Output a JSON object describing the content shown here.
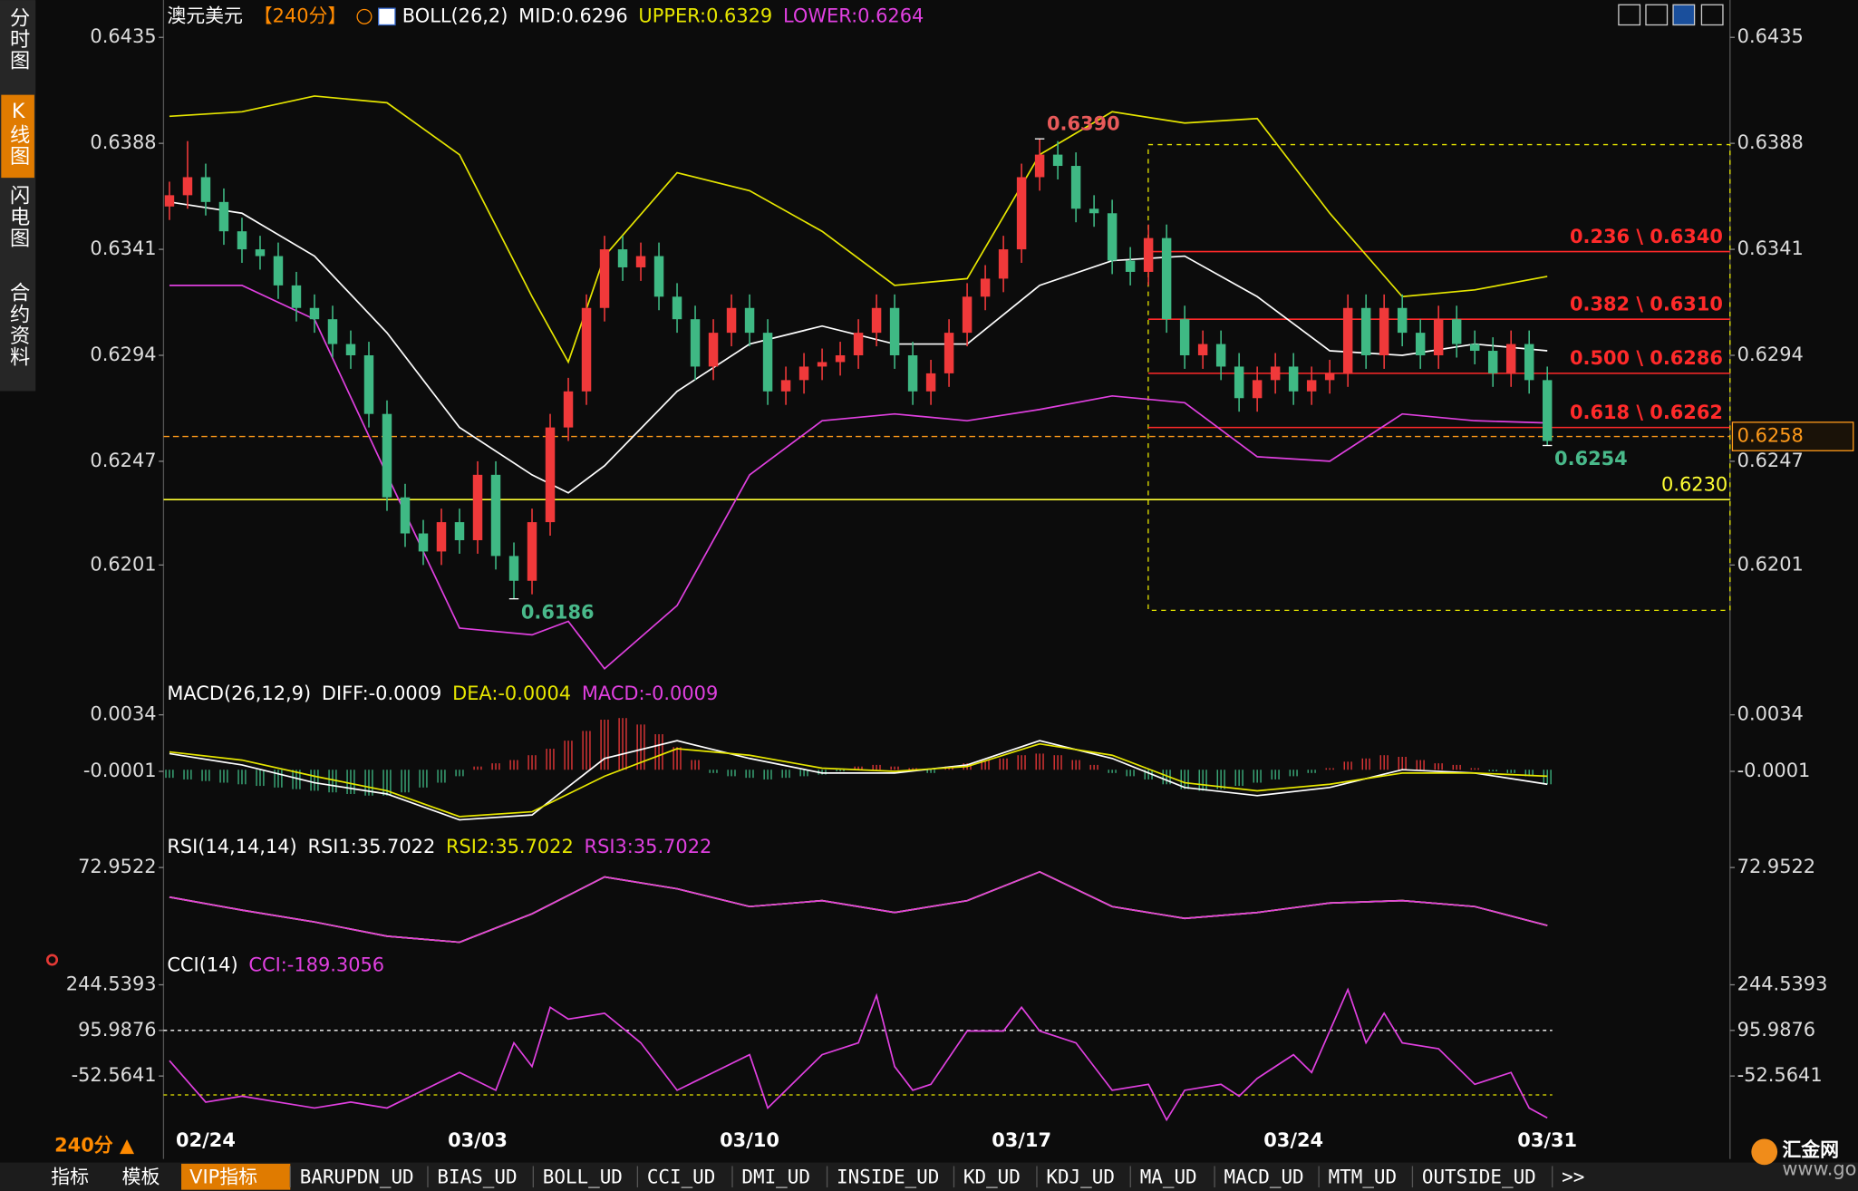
{
  "chart_data": [
    {
      "type": "candlestick",
      "title": "澳元美元",
      "period": "【240分】",
      "indicator": "BOLL(26,2)",
      "categories": [
        null,
        null,
        "02/24",
        null,
        null,
        null,
        null,
        null,
        null,
        null,
        null,
        null,
        null,
        null,
        null,
        null,
        null,
        "03/03",
        null,
        null,
        null,
        null,
        null,
        null,
        null,
        null,
        null,
        null,
        null,
        null,
        null,
        null,
        "03/10",
        null,
        null,
        null,
        null,
        null,
        null,
        null,
        null,
        null,
        null,
        null,
        null,
        null,
        null,
        "03/17",
        null,
        null,
        null,
        null,
        null,
        null,
        null,
        null,
        null,
        null,
        null,
        null,
        null,
        null,
        "03/24",
        null,
        null,
        null,
        null,
        null,
        null,
        null,
        null,
        null,
        null,
        null,
        null,
        null,
        "03/31"
      ],
      "open": [
        0.636,
        0.6365,
        0.6373,
        0.6362,
        0.6349,
        0.6341,
        0.6338,
        0.6325,
        0.6315,
        0.631,
        0.6299,
        0.6294,
        0.6268,
        0.6231,
        0.6215,
        0.6207,
        0.622,
        0.6212,
        0.6241,
        0.6205,
        0.6194,
        0.622,
        0.6262,
        0.6278,
        0.6315,
        0.6341,
        0.6333,
        0.6338,
        0.632,
        0.631,
        0.6289,
        0.6304,
        0.6315,
        0.6304,
        0.6278,
        0.6283,
        0.6289,
        0.6291,
        0.6294,
        0.6304,
        0.6315,
        0.6294,
        0.6278,
        0.6286,
        0.6304,
        0.632,
        0.6328,
        0.6341,
        0.6373,
        0.6383,
        0.6378,
        0.6359,
        0.6357,
        0.6336,
        0.6331,
        0.6346,
        0.631,
        0.6294,
        0.6299,
        0.6289,
        0.6275,
        0.6283,
        0.6289,
        0.6278,
        0.6283,
        0.6286,
        0.6315,
        0.6294,
        0.6315,
        0.6304,
        0.6294,
        0.631,
        0.6299,
        0.6296,
        0.6286,
        0.6299,
        0.6283
      ],
      "high": [
        0.6371,
        0.6389,
        0.6379,
        0.6368,
        0.6355,
        0.6347,
        0.6344,
        0.6331,
        0.6321,
        0.6316,
        0.6305,
        0.63,
        0.6274,
        0.6237,
        0.6221,
        0.6226,
        0.6226,
        0.6247,
        0.6247,
        0.6211,
        0.6226,
        0.6268,
        0.6284,
        0.6321,
        0.6347,
        0.6347,
        0.6344,
        0.6344,
        0.6326,
        0.6316,
        0.631,
        0.6321,
        0.6321,
        0.631,
        0.6289,
        0.6295,
        0.6297,
        0.63,
        0.631,
        0.6321,
        0.6321,
        0.63,
        0.6292,
        0.631,
        0.6326,
        0.6334,
        0.6347,
        0.6379,
        0.639,
        0.6389,
        0.6384,
        0.6365,
        0.6363,
        0.6342,
        0.6352,
        0.6352,
        0.6316,
        0.6305,
        0.6305,
        0.6295,
        0.6289,
        0.6295,
        0.6295,
        0.6289,
        0.6292,
        0.6321,
        0.6321,
        0.6321,
        0.6321,
        0.631,
        0.6316,
        0.6316,
        0.6305,
        0.6302,
        0.6305,
        0.6305,
        0.6289
      ],
      "low": [
        0.6354,
        0.6359,
        0.6356,
        0.6343,
        0.6335,
        0.6332,
        0.6319,
        0.6309,
        0.6304,
        0.6293,
        0.6288,
        0.6262,
        0.6225,
        0.6209,
        0.6201,
        0.6201,
        0.6206,
        0.6206,
        0.6199,
        0.6186,
        0.6188,
        0.6214,
        0.6256,
        0.6272,
        0.6309,
        0.6327,
        0.6327,
        0.6314,
        0.6304,
        0.6283,
        0.6283,
        0.6298,
        0.6298,
        0.6272,
        0.6272,
        0.6277,
        0.6283,
        0.6285,
        0.6288,
        0.6298,
        0.6288,
        0.6272,
        0.6272,
        0.628,
        0.6298,
        0.6314,
        0.6322,
        0.6335,
        0.6367,
        0.6372,
        0.6353,
        0.6351,
        0.633,
        0.6325,
        0.6325,
        0.6304,
        0.6288,
        0.6288,
        0.6283,
        0.6269,
        0.6269,
        0.6277,
        0.6272,
        0.6272,
        0.6277,
        0.628,
        0.6288,
        0.6288,
        0.6298,
        0.6288,
        0.6288,
        0.6293,
        0.629,
        0.628,
        0.628,
        0.6277,
        0.6254
      ],
      "close": [
        0.6365,
        0.6373,
        0.6362,
        0.6349,
        0.6341,
        0.6338,
        0.6325,
        0.6315,
        0.631,
        0.6299,
        0.6294,
        0.6268,
        0.6231,
        0.6215,
        0.6207,
        0.622,
        0.6212,
        0.6241,
        0.6205,
        0.6194,
        0.622,
        0.6262,
        0.6278,
        0.6315,
        0.6341,
        0.6333,
        0.6338,
        0.632,
        0.631,
        0.6289,
        0.6304,
        0.6315,
        0.6304,
        0.6278,
        0.6283,
        0.6289,
        0.6291,
        0.6294,
        0.6304,
        0.6315,
        0.6294,
        0.6278,
        0.6286,
        0.6304,
        0.632,
        0.6328,
        0.6341,
        0.6373,
        0.6383,
        0.6378,
        0.6359,
        0.6357,
        0.6336,
        0.6331,
        0.6346,
        0.631,
        0.6294,
        0.6299,
        0.6289,
        0.6275,
        0.6283,
        0.6289,
        0.6278,
        0.6283,
        0.6286,
        0.6315,
        0.6294,
        0.6315,
        0.6304,
        0.6294,
        0.631,
        0.6299,
        0.6296,
        0.6286,
        0.6299,
        0.6283,
        0.6256
      ],
      "up_color": "#f0393a",
      "down_color": "#3fb984",
      "series": [
        {
          "name": "MID:0.6296",
          "color": "#ffffff",
          "x": [
            0,
            4,
            8,
            12,
            16,
            20,
            22,
            24,
            28,
            32,
            36,
            40,
            44,
            48,
            52,
            56,
            60,
            64,
            68,
            72,
            76
          ],
          "values": [
            0.6362,
            0.6357,
            0.6338,
            0.6304,
            0.6262,
            0.6241,
            0.6233,
            0.6245,
            0.6278,
            0.6299,
            0.6307,
            0.6299,
            0.6299,
            0.6325,
            0.6336,
            0.6338,
            0.632,
            0.6296,
            0.6294,
            0.6299,
            0.6296
          ]
        },
        {
          "name": "UPPER:0.6329",
          "color": "#e6e600",
          "x": [
            0,
            4,
            8,
            12,
            16,
            20,
            22,
            24,
            28,
            32,
            36,
            40,
            44,
            48,
            52,
            56,
            60,
            64,
            68,
            72,
            76
          ],
          "values": [
            0.64,
            0.6402,
            0.6409,
            0.6406,
            0.6383,
            0.632,
            0.6291,
            0.6338,
            0.6375,
            0.6367,
            0.6349,
            0.6325,
            0.6328,
            0.6383,
            0.6402,
            0.6397,
            0.6399,
            0.6357,
            0.632,
            0.6323,
            0.6329
          ]
        },
        {
          "name": "LOWER:0.6264",
          "color": "#e040e0",
          "x": [
            0,
            4,
            8,
            12,
            16,
            20,
            22,
            24,
            28,
            32,
            36,
            40,
            44,
            48,
            52,
            56,
            60,
            64,
            68,
            72,
            76
          ],
          "values": [
            0.6325,
            0.6325,
            0.631,
            0.6241,
            0.6173,
            0.617,
            0.6176,
            0.6155,
            0.6183,
            0.6241,
            0.6265,
            0.6268,
            0.6265,
            0.627,
            0.6276,
            0.6273,
            0.6249,
            0.6247,
            0.6268,
            0.6265,
            0.6264
          ]
        }
      ],
      "ylim": [
        0.6152,
        0.644
      ],
      "yticks": [
        0.6435,
        0.6388,
        0.6341,
        0.6294,
        0.6247,
        0.6201
      ],
      "fib_levels": [
        {
          "value": 0.634,
          "label": "0.236 \\ 0.6340"
        },
        {
          "value": 0.631,
          "label": "0.382 \\ 0.6310"
        },
        {
          "value": 0.6286,
          "label": "0.500 \\ 0.6286"
        },
        {
          "value": 0.6262,
          "label": "0.618 \\ 0.6262"
        }
      ],
      "fib_color": "#ff2a2a",
      "support": {
        "value": 0.623,
        "label": "0.6230",
        "color": "#ffff33"
      },
      "last_price": {
        "value": 0.6258,
        "color": "#ff9a1a"
      },
      "annotations": [
        {
          "value": 0.639,
          "label": "0.6390",
          "index": 48,
          "anchor": "high",
          "color": "#e85a5a"
        },
        {
          "value": 0.6186,
          "label": "0.6186",
          "index": 19,
          "anchor": "low",
          "color": "#49b98a"
        },
        {
          "value": 0.6254,
          "index": 76,
          "anchor": "low",
          "color": "#49b98a"
        }
      ]
    },
    {
      "type": "macd",
      "title": "MACD(26,12,9)",
      "series": [
        {
          "name": "DIFF:-0.0009",
          "color": "#ffffff",
          "x": [
            0,
            4,
            8,
            12,
            16,
            20,
            24,
            28,
            32,
            36,
            40,
            44,
            48,
            52,
            56,
            60,
            64,
            68,
            72,
            76
          ],
          "values": [
            0.001,
            0.0003,
            -0.0008,
            -0.0015,
            -0.0031,
            -0.0028,
            0.0007,
            0.0018,
            0.0007,
            -0.0002,
            -0.0002,
            0.0003,
            0.0018,
            0.0007,
            -0.0011,
            -0.0016,
            -0.0011,
            0.0,
            -0.0002,
            -0.0009
          ]
        },
        {
          "name": "DEA:-0.0004",
          "color": "#e6e600",
          "x": [
            0,
            4,
            8,
            12,
            16,
            20,
            24,
            28,
            32,
            36,
            40,
            44,
            48,
            52,
            56,
            60,
            64,
            68,
            72,
            76
          ],
          "values": [
            0.0011,
            0.0006,
            -0.0004,
            -0.0013,
            -0.0029,
            -0.0026,
            -0.0004,
            0.0013,
            0.0009,
            0.0001,
            -0.0001,
            0.0002,
            0.0016,
            0.0009,
            -0.0008,
            -0.0013,
            -0.0009,
            -0.0002,
            -0.0002,
            -0.0004
          ]
        },
        {
          "name": "MACD:-0.0009",
          "color": "#e040e0",
          "style": "bar",
          "up_color": "#f0393a",
          "down_color": "#3fb984",
          "values": [
            -0.0005,
            -0.0006,
            -0.0007,
            -0.0008,
            -0.0009,
            -0.001,
            -0.0011,
            -0.0012,
            -0.0013,
            -0.0014,
            -0.0015,
            -0.0016,
            -0.0016,
            -0.0014,
            -0.0011,
            -0.0008,
            -0.0004,
            0.0002,
            0.0004,
            0.0006,
            0.0009,
            0.0013,
            0.0018,
            0.0024,
            0.0031,
            0.0032,
            0.0028,
            0.0022,
            0.0014,
            0.0006,
            -0.0002,
            -0.0004,
            -0.0005,
            -0.0006,
            -0.0005,
            -0.0004,
            -0.0003,
            -0.0001,
            0.0002,
            0.0003,
            0.0002,
            0.0001,
            -0.0002,
            0.0002,
            0.0004,
            0.0006,
            0.0007,
            0.0009,
            0.001,
            0.0009,
            0.0006,
            0.0003,
            -0.0002,
            -0.0004,
            -0.0006,
            -0.0009,
            -0.0012,
            -0.0013,
            -0.0012,
            -0.001,
            -0.0008,
            -0.0006,
            -0.0004,
            -0.0002,
            0.0001,
            0.0005,
            0.0007,
            0.0009,
            0.0008,
            0.0006,
            0.0004,
            0.0003,
            0.0001,
            -0.0001,
            -0.0002,
            -0.0004,
            -0.0009
          ]
        }
      ],
      "ylim": [
        -0.0037,
        0.004
      ],
      "yticks": [
        0.0034,
        -0.0001
      ]
    },
    {
      "type": "line",
      "title": "RSI(14,14,14)",
      "series": [
        {
          "name": "RSI1:35.7022",
          "color": "#ffffff",
          "x": [
            0,
            4,
            8,
            12,
            16,
            20,
            24,
            28,
            32,
            36,
            40,
            44,
            48,
            52,
            56,
            60,
            64,
            68,
            72,
            76
          ],
          "values": [
            54.0,
            45.6,
            38.0,
            28.9,
            25.0,
            43.3,
            66.9,
            59.3,
            47.9,
            51.7,
            44.1,
            51.7,
            70.2,
            47.9,
            40.3,
            44.1,
            50.2,
            51.7,
            47.9,
            35.7022
          ]
        },
        {
          "name": "RSI2:35.7022",
          "color": "#e6e600",
          "x": [
            0,
            4,
            8,
            12,
            16,
            20,
            24,
            28,
            32,
            36,
            40,
            44,
            48,
            52,
            56,
            60,
            64,
            68,
            72,
            76
          ],
          "values": [
            54.0,
            45.6,
            38.0,
            28.9,
            25.0,
            43.3,
            66.9,
            59.3,
            47.9,
            51.7,
            44.1,
            51.7,
            70.2,
            47.9,
            40.3,
            44.1,
            50.2,
            51.7,
            47.9,
            35.7022
          ]
        },
        {
          "name": "RSI3:35.7022",
          "color": "#e040e0",
          "x": [
            0,
            4,
            8,
            12,
            16,
            20,
            24,
            28,
            32,
            36,
            40,
            44,
            48,
            52,
            56,
            60,
            64,
            68,
            72,
            76
          ],
          "values": [
            54.0,
            45.6,
            38.0,
            28.9,
            25.0,
            43.3,
            66.9,
            59.3,
            47.9,
            51.7,
            44.1,
            51.7,
            70.2,
            47.9,
            40.3,
            44.1,
            50.2,
            51.7,
            47.9,
            35.7022
          ]
        }
      ],
      "ylim": [
        21.3,
        82.1
      ],
      "yticks": [
        72.9522
      ]
    },
    {
      "type": "line",
      "title": "CCI(14)",
      "series": [
        {
          "name": "CCI:-189.3056",
          "color": "#e040e0",
          "x": [
            0,
            2,
            4,
            6,
            8,
            10,
            12,
            14,
            16,
            18,
            19,
            20,
            21,
            22,
            24,
            26,
            28,
            30,
            32,
            33,
            34,
            36,
            38,
            39,
            40,
            41,
            42,
            44,
            46,
            47,
            48,
            50,
            52,
            54,
            55,
            56,
            58,
            59,
            60,
            62,
            63,
            65,
            66,
            67,
            68,
            70,
            72,
            74,
            75,
            76
          ],
          "values": [
            -2.4,
            -137.4,
            -118.1,
            -137.4,
            -156.7,
            -137.4,
            -156.7,
            -98.8,
            -41.0,
            -98.8,
            55.5,
            -21.7,
            171.2,
            132.7,
            151.9,
            55.5,
            -98.8,
            -41.0,
            16.9,
            -156.7,
            -98.8,
            16.9,
            55.5,
            209.8,
            -21.7,
            -98.8,
            -79.5,
            94.1,
            94.1,
            171.2,
            94.1,
            55.5,
            -98.8,
            -79.5,
            -195.3,
            -98.8,
            -79.5,
            -118.1,
            -60.2,
            16.9,
            -41.0,
            229.1,
            55.5,
            151.9,
            55.5,
            36.2,
            -79.5,
            -41.0,
            -156.7,
            -189.3056
          ]
        }
      ],
      "reference_lines": [
        {
          "value": 95.9876,
          "color": "#ffffff"
        },
        {
          "value": -114,
          "color": "#e6e600"
        }
      ],
      "ylim": [
        -222.3,
        279.3
      ],
      "yticks": [
        244.5393,
        95.9876,
        -52.5641
      ]
    }
  ],
  "ui": {
    "sidebar": [
      "分时图",
      "K线图",
      "闪电图",
      "合约资料"
    ],
    "active_tab": 1,
    "period_button": "240分 ▲",
    "toolbar": [
      "指标",
      "模板",
      "VIP指标",
      "BARUPDN_UD",
      "BIAS_UD",
      "BOLL_UD",
      "CCI_UD",
      "DMI_UD",
      "INSIDE_UD",
      "KD_UD",
      "KDJ_UD",
      "MA_UD",
      "MACD_UD",
      "MTM_UD",
      "OUTSIDE_UD",
      ">>"
    ],
    "active_toolbar": 2,
    "logo": "汇金网",
    "logo_url": "www.gold678.com"
  }
}
